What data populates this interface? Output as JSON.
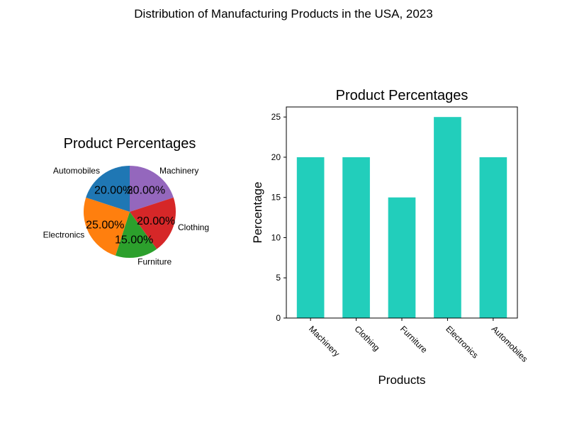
{
  "figure": {
    "title": "Distribution of Manufacturing Products in the USA, 2023"
  },
  "chart_data": [
    {
      "type": "pie",
      "title": "Product Percentages",
      "categories": [
        "Machinery",
        "Clothing",
        "Furniture",
        "Electronics",
        "Automobiles"
      ],
      "values": [
        20,
        20,
        15,
        25,
        20
      ],
      "value_labels": [
        "20.00%",
        "20.00%",
        "15.00%",
        "25.00%",
        "20.00%"
      ],
      "colors": [
        "#9467bd",
        "#d62728",
        "#2ca02c",
        "#ff7f0e",
        "#1f77b4"
      ],
      "start_angle_deg": 90,
      "direction": "clockwise"
    },
    {
      "type": "bar",
      "title": "Product Percentages",
      "categories": [
        "Machinery",
        "Clothing",
        "Furniture",
        "Electronics",
        "Automobiles"
      ],
      "values": [
        20,
        20,
        15,
        25,
        20
      ],
      "xlabel": "Products",
      "ylabel": "Percentage",
      "ylim": [
        0,
        26.25
      ],
      "yticks": [
        0,
        5,
        10,
        15,
        20,
        25
      ],
      "bar_color": "#22cebb",
      "grid": false
    }
  ]
}
